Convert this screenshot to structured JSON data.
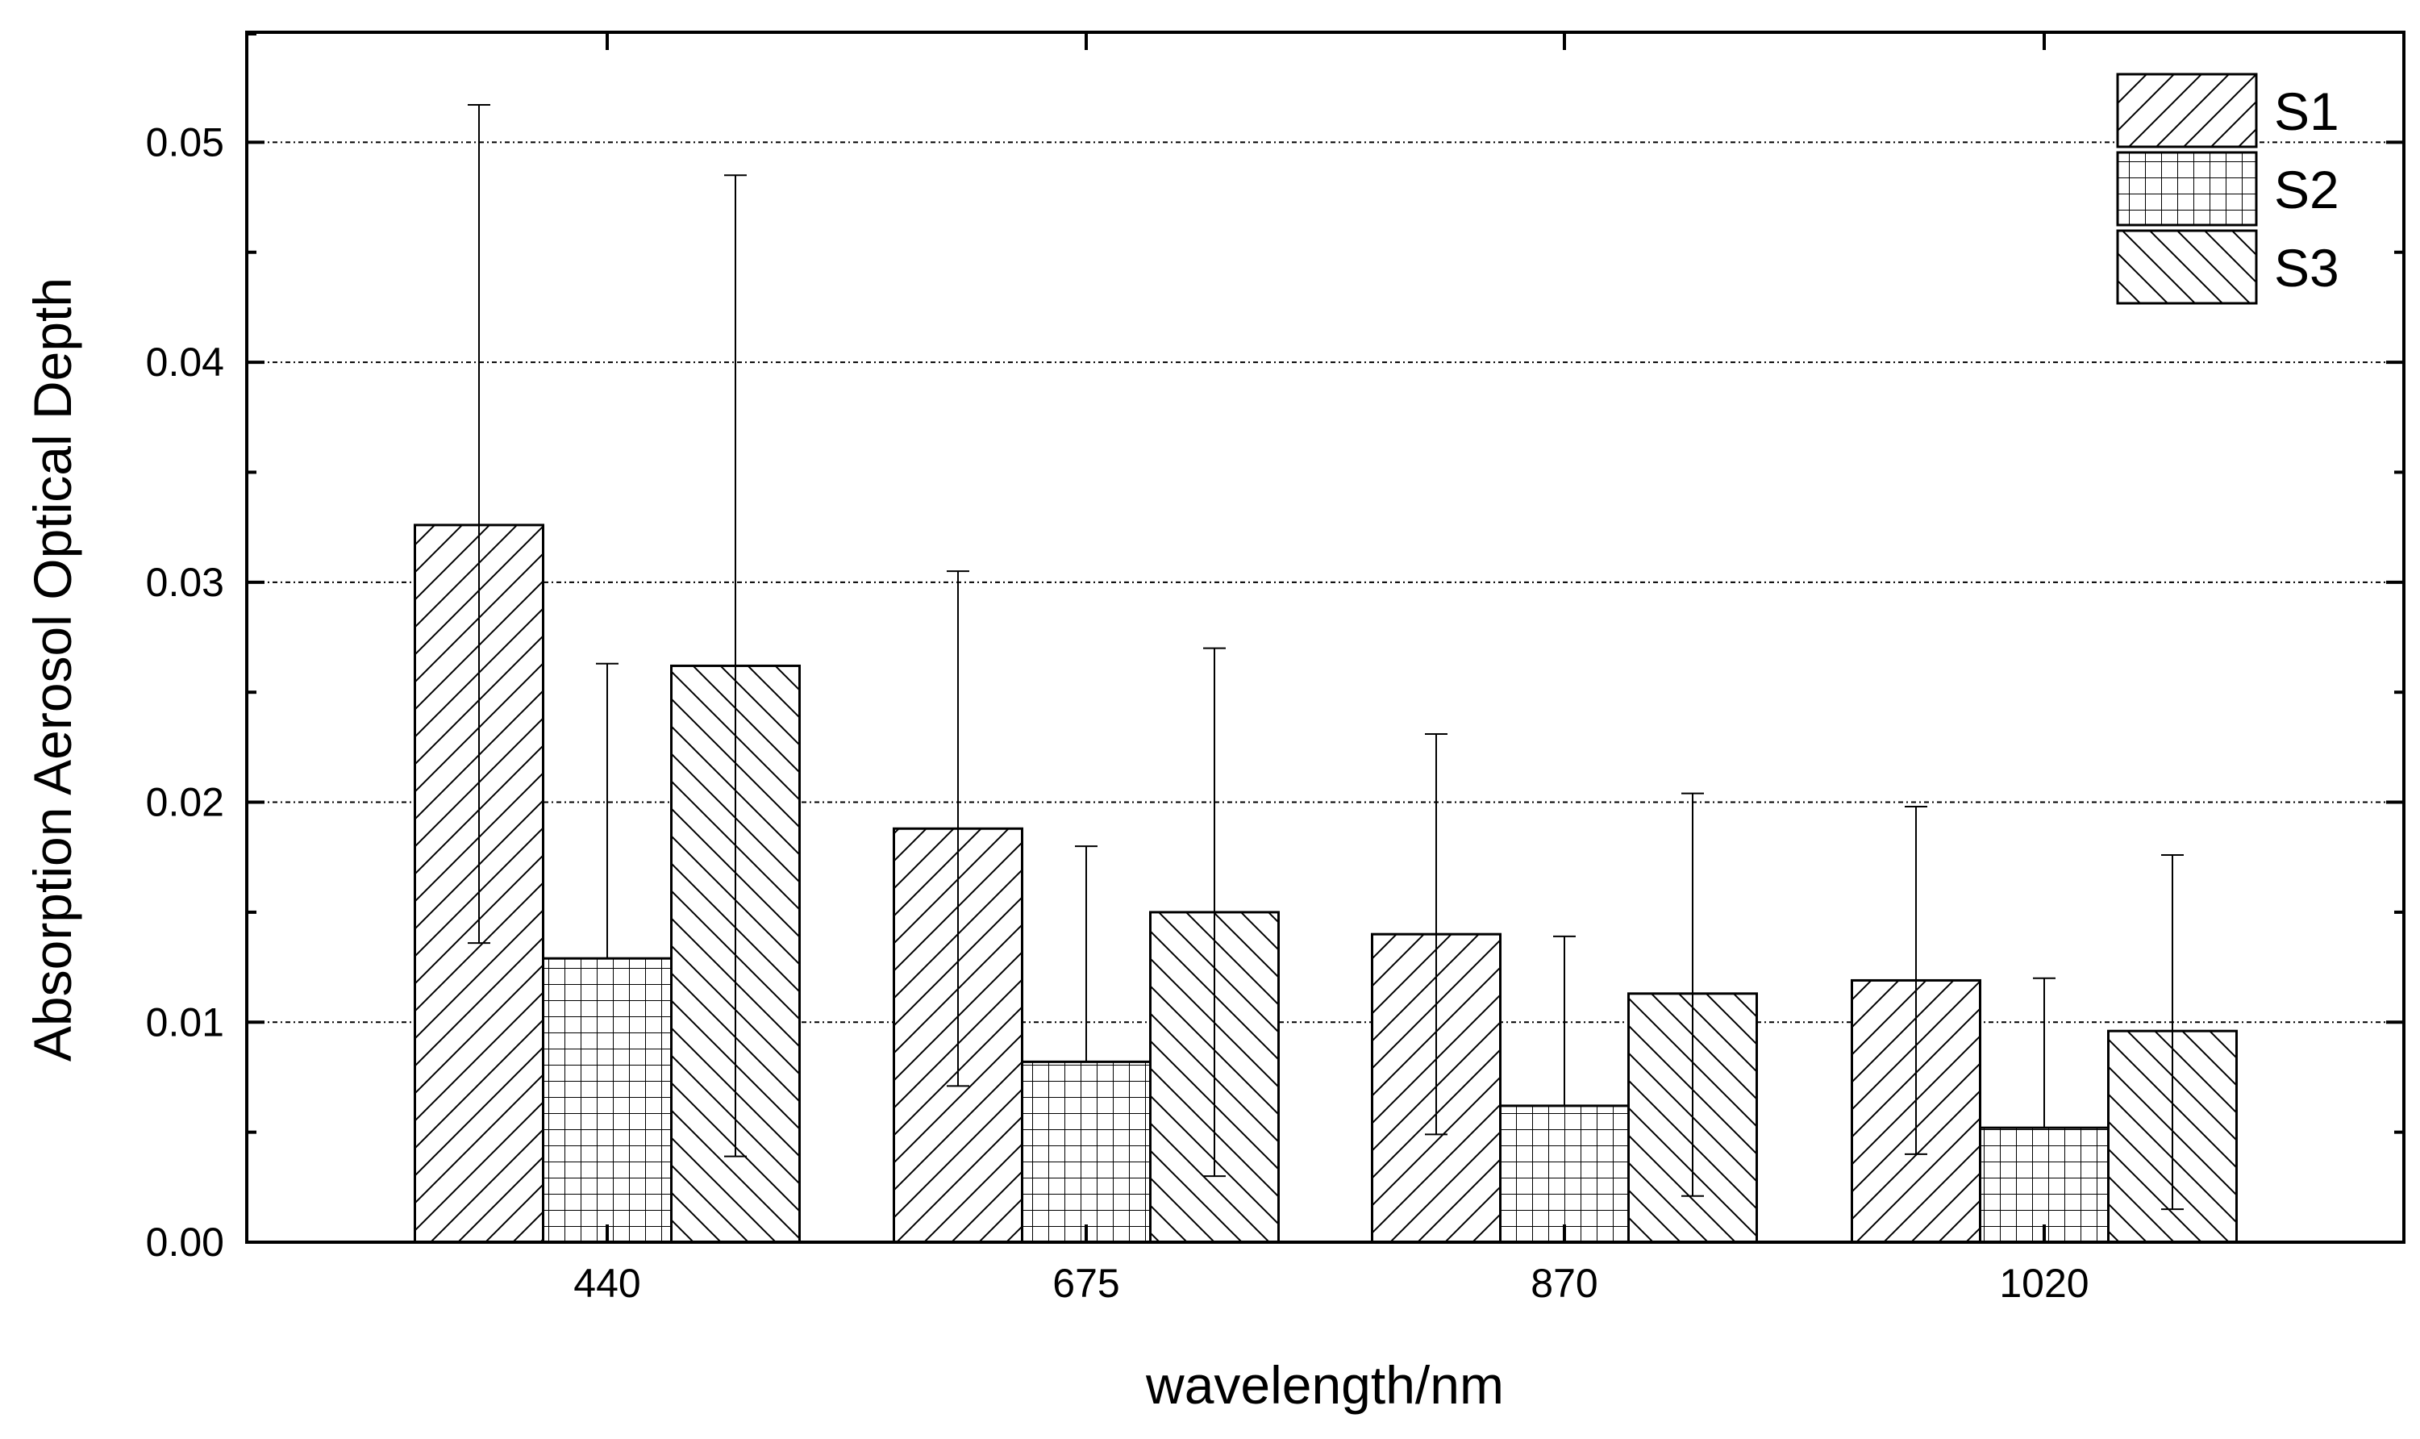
{
  "chart_data": {
    "type": "bar",
    "title": "",
    "xlabel": "wavelength/nm",
    "ylabel": "Absorption Aerosol Optical Depth",
    "categories": [
      "440",
      "675",
      "870",
      "1020"
    ],
    "ylim": [
      0,
      0.055
    ],
    "yticks": [
      0.0,
      0.01,
      0.02,
      0.03,
      0.04,
      0.05
    ],
    "ytick_labels": [
      "0.00",
      "0.01",
      "0.02",
      "0.03",
      "0.04",
      "0.05"
    ],
    "grid": "horizontal dotted at major y ticks",
    "legend_position": "top-right",
    "series": [
      {
        "name": "S1",
        "pattern": "forward-diagonal hatch",
        "values": [
          0.0326,
          0.0188,
          0.014,
          0.0119
        ],
        "error_low": [
          0.0136,
          0.0071,
          0.0049,
          0.004
        ],
        "error_high": [
          0.0517,
          0.0305,
          0.0231,
          0.0198
        ]
      },
      {
        "name": "S2",
        "pattern": "grid hatch",
        "values": [
          0.0129,
          0.0082,
          0.0062,
          0.0052
        ],
        "error_low": [
          0.0129,
          0.0082,
          0.0062,
          0.0052
        ],
        "error_high": [
          0.0263,
          0.018,
          0.0139,
          0.012
        ]
      },
      {
        "name": "S3",
        "pattern": "backward-diagonal hatch",
        "values": [
          0.0262,
          0.015,
          0.0113,
          0.0096
        ],
        "error_low": [
          0.0039,
          0.003,
          0.0021,
          0.0015
        ],
        "error_high": [
          0.0485,
          0.027,
          0.0204,
          0.0176
        ]
      }
    ]
  }
}
